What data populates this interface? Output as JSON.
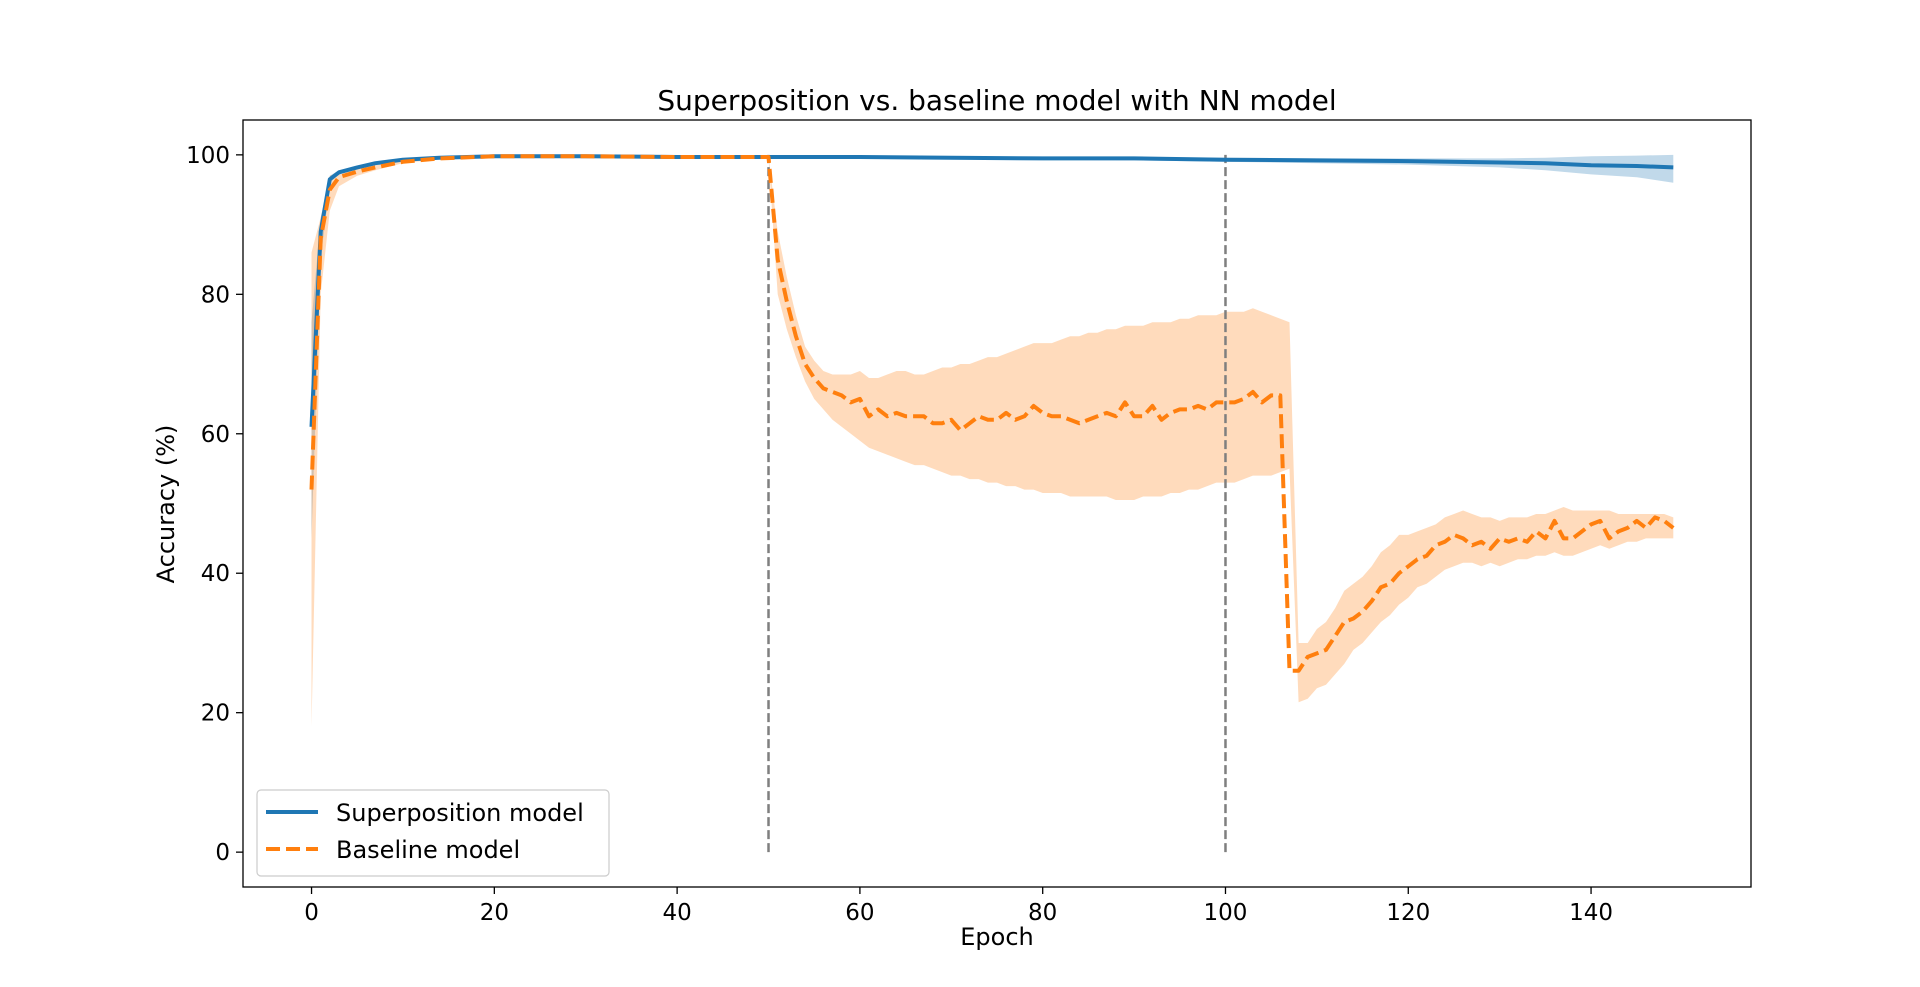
{
  "chart_data": {
    "type": "line",
    "title": "Superposition vs. baseline model with NN model",
    "xlabel": "Epoch",
    "ylabel": "Accuracy (%)",
    "xlim": [
      -7.5,
      157.5
    ],
    "ylim": [
      -5,
      105
    ],
    "xticks": [
      0,
      20,
      40,
      60,
      80,
      100,
      120,
      140
    ],
    "yticks": [
      0,
      20,
      40,
      60,
      80,
      100
    ],
    "grid": false,
    "legend_position": "lower-left",
    "vlines": [
      {
        "x": 50,
        "ymin": 0,
        "ymax": 100,
        "color": "#7f7f7f",
        "style": "dashed"
      },
      {
        "x": 100,
        "ymin": 0,
        "ymax": 100,
        "color": "#7f7f7f",
        "style": "dashed"
      }
    ],
    "series": [
      {
        "name": "Superposition model",
        "color": "#1f77b4",
        "style": "solid",
        "x": [
          0,
          1,
          2,
          3,
          5,
          7,
          10,
          14,
          20,
          30,
          40,
          50,
          60,
          70,
          80,
          90,
          100,
          110,
          120,
          130,
          135,
          140,
          145,
          149
        ],
        "y": [
          61,
          89,
          96.5,
          97.5,
          98.2,
          98.8,
          99.3,
          99.6,
          99.8,
          99.8,
          99.7,
          99.7,
          99.7,
          99.6,
          99.5,
          99.5,
          99.3,
          99.2,
          99.1,
          98.9,
          98.8,
          98.5,
          98.4,
          98.2
        ],
        "band_lower": [
          45,
          85,
          96,
          97.2,
          98,
          98.6,
          99.2,
          99.5,
          99.7,
          99.7,
          99.6,
          99.6,
          99.6,
          99.4,
          99.3,
          99.2,
          99,
          98.8,
          98.6,
          98.2,
          97.8,
          97.2,
          96.8,
          96
        ],
        "band_upper": [
          76,
          91,
          97,
          97.8,
          98.4,
          99,
          99.5,
          99.7,
          99.9,
          99.9,
          99.8,
          99.8,
          99.8,
          99.7,
          99.7,
          99.7,
          99.6,
          99.5,
          99.5,
          99.5,
          99.6,
          99.8,
          99.9,
          100
        ]
      },
      {
        "name": "Baseline model",
        "color": "#ff7f0e",
        "style": "dashed",
        "x": [
          0,
          1,
          2,
          3,
          5,
          7,
          10,
          14,
          20,
          30,
          40,
          50,
          51,
          52,
          53,
          54,
          55,
          56,
          57,
          58,
          59,
          60,
          61,
          62,
          63,
          64,
          65,
          66,
          67,
          68,
          69,
          70,
          71,
          72,
          73,
          74,
          75,
          76,
          77,
          78,
          79,
          80,
          81,
          82,
          83,
          84,
          85,
          86,
          87,
          88,
          89,
          90,
          91,
          92,
          93,
          94,
          95,
          96,
          97,
          98,
          99,
          100,
          101,
          102,
          103,
          104,
          105,
          106,
          107,
          108,
          109,
          110,
          111,
          112,
          113,
          114,
          115,
          116,
          117,
          118,
          119,
          120,
          121,
          122,
          123,
          124,
          125,
          126,
          127,
          128,
          129,
          130,
          131,
          132,
          133,
          134,
          135,
          136,
          137,
          138,
          139,
          140,
          141,
          142,
          143,
          144,
          145,
          146,
          147,
          148,
          149
        ],
        "y": [
          52,
          88,
          95,
          96.8,
          97.6,
          98.2,
          99,
          99.5,
          99.8,
          99.8,
          99.7,
          99.7,
          85,
          79,
          74,
          70,
          68,
          66.5,
          66,
          65.5,
          64.5,
          65,
          62.5,
          63.5,
          62.5,
          63,
          62.5,
          62.5,
          62.5,
          61.5,
          61.5,
          62,
          60.5,
          61.5,
          62.5,
          62,
          62,
          63,
          62,
          62.5,
          64,
          63,
          62.5,
          62.5,
          62,
          61.5,
          62,
          62.5,
          63,
          62.5,
          64.5,
          62.5,
          62.5,
          64,
          62,
          63,
          63.5,
          63.5,
          64,
          63.5,
          64.5,
          64.5,
          64.5,
          65,
          66,
          64.5,
          65.5,
          65.5,
          26,
          26,
          28,
          28.5,
          29,
          31,
          33,
          33.5,
          34.5,
          36,
          38,
          38.5,
          40,
          41,
          42,
          42.5,
          44,
          44.5,
          45.5,
          45,
          44,
          44.5,
          43.5,
          45,
          44.5,
          45,
          44.5,
          46,
          45,
          47.5,
          45,
          45,
          46,
          47,
          47.5,
          45,
          46,
          46.5,
          47.5,
          46.5,
          48,
          47.5,
          46.5
        ],
        "band_lower": [
          18,
          80,
          92,
          95.5,
          97,
          97.8,
          98.8,
          99.4,
          99.7,
          99.7,
          99.6,
          99.5,
          80,
          75,
          71,
          67.5,
          65,
          63.5,
          62,
          61,
          60,
          59,
          58,
          57.5,
          57,
          56.5,
          56,
          55.5,
          55.5,
          55,
          54.5,
          54,
          54,
          53.5,
          53.5,
          53,
          53,
          52.5,
          52.5,
          52,
          52,
          51.5,
          51.5,
          51.5,
          51,
          51,
          51,
          51,
          51,
          50.5,
          50.5,
          50.5,
          51,
          51,
          51,
          51.5,
          51.5,
          52,
          52,
          52.5,
          53,
          53,
          53,
          53.5,
          54,
          54,
          54,
          54.5,
          55,
          21.5,
          22,
          23.5,
          24,
          25.5,
          27,
          29,
          30,
          31.5,
          33,
          34,
          35.5,
          36.5,
          38,
          38.5,
          39.5,
          40.5,
          41,
          41.5,
          41.5,
          41,
          41.5,
          41,
          41.5,
          42,
          42,
          42.5,
          42.5,
          43,
          42.5,
          42.5,
          43,
          43.5,
          44,
          43.5,
          44,
          44.5,
          44.5,
          45,
          45,
          45,
          45
        ],
        "band_upper": [
          86,
          91,
          97,
          97.5,
          98,
          98.5,
          99.2,
          99.6,
          99.9,
          99.9,
          99.8,
          99.8,
          89,
          82.5,
          77,
          72.5,
          70.5,
          69,
          68.5,
          68.5,
          68.5,
          69,
          68,
          68,
          68.5,
          69,
          69,
          68.5,
          68.5,
          69,
          69.5,
          69.5,
          70,
          70,
          70.5,
          71,
          71,
          71.5,
          72,
          72.5,
          73,
          73,
          73,
          73.5,
          74,
          74,
          74.5,
          74.5,
          75,
          75,
          75.5,
          75.5,
          75.5,
          76,
          76,
          76,
          76.5,
          76.5,
          77,
          77,
          77,
          77.5,
          77.5,
          77.5,
          78,
          77.5,
          77,
          76.5,
          76,
          30,
          30,
          32,
          33,
          35,
          37.5,
          38.5,
          39.5,
          41,
          43,
          44,
          45.5,
          45.5,
          46,
          46.5,
          47,
          48,
          48.5,
          49,
          48.5,
          48,
          48,
          47.5,
          48,
          48,
          48,
          48.5,
          48.5,
          49,
          49.5,
          49,
          49,
          49,
          49,
          49,
          48.5,
          48.5,
          48.5,
          48.5,
          48.5,
          48.5,
          48
        ]
      }
    ]
  }
}
